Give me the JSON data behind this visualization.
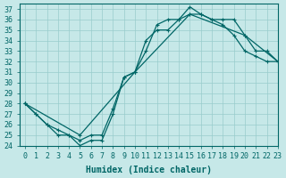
{
  "xlabel": "Humidex (Indice chaleur)",
  "ylabel": "",
  "xlim": [
    -0.5,
    23
  ],
  "ylim": [
    24,
    37.5
  ],
  "yticks": [
    24,
    25,
    26,
    27,
    28,
    29,
    30,
    31,
    32,
    33,
    34,
    35,
    36,
    37
  ],
  "xticks": [
    0,
    1,
    2,
    3,
    4,
    5,
    6,
    7,
    8,
    9,
    10,
    11,
    12,
    13,
    14,
    15,
    16,
    17,
    18,
    19,
    20,
    21,
    22,
    23
  ],
  "bg_color": "#c6e8e8",
  "line_color": "#006666",
  "grid_color": "#99cccc",
  "line1_x": [
    0,
    1,
    2,
    3,
    4,
    5,
    6,
    7,
    8,
    9,
    10,
    11,
    12,
    13,
    14,
    15,
    16,
    17,
    18,
    19,
    20,
    21,
    22,
    23
  ],
  "line1_y": [
    28,
    27,
    26,
    25,
    25,
    24,
    24.5,
    24.5,
    27,
    30.5,
    31,
    34,
    35,
    35,
    36,
    37.2,
    36.5,
    36,
    35.5,
    34.5,
    33,
    32.5,
    32,
    32
  ],
  "line2_x": [
    0,
    1,
    2,
    3,
    4,
    5,
    6,
    7,
    8,
    9,
    10,
    11,
    12,
    13,
    14,
    15,
    16,
    17,
    18,
    19,
    20,
    21,
    22,
    23
  ],
  "line2_y": [
    28,
    27,
    26,
    25.5,
    25,
    24.5,
    25,
    25,
    27.5,
    30.5,
    31,
    33,
    35.5,
    36,
    36,
    36.5,
    36.5,
    36,
    36,
    36,
    34.5,
    33,
    33,
    32
  ],
  "line3_x": [
    0,
    5,
    10,
    15,
    20,
    23
  ],
  "line3_y": [
    28,
    25,
    31,
    36.5,
    34.5,
    32
  ],
  "font_size": 7,
  "tick_font_size": 6
}
